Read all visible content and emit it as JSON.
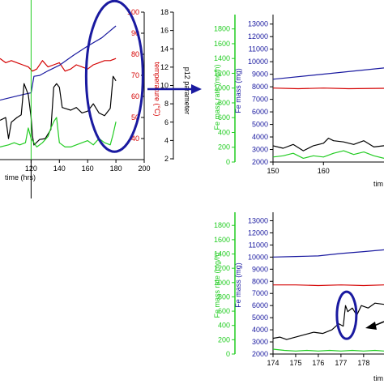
{
  "colors": {
    "black": "#000000",
    "red": "#d40000",
    "green": "#22cc22",
    "blue": "#1a1aa0",
    "marker_vline": "#22cc22",
    "annotation": "#1a1aa0"
  },
  "chart_data": [
    {
      "type": "line",
      "id": "main",
      "xlabel": "time (hrs)",
      "ylabel_red": "temperature (°C)",
      "ylabel_black": "p12 parameter",
      "x_ticks": [
        120,
        140,
        160,
        180,
        200
      ],
      "red_ticks": [
        40,
        50,
        60,
        70,
        80,
        90,
        100
      ],
      "black_ticks": [
        2,
        4,
        6,
        8,
        10,
        12,
        14,
        16,
        18
      ],
      "xlim": [
        98,
        200
      ],
      "red_ylim": [
        30,
        100
      ],
      "black_ylim": [
        2,
        18
      ],
      "marker_x": 120,
      "ellipse_center": [
        179,
        11
      ],
      "series": [
        {
          "color": "red",
          "x": [
            98,
            102,
            106,
            110,
            114,
            118,
            121,
            124,
            128,
            132,
            136,
            140,
            144,
            148,
            152,
            156,
            160,
            164,
            168,
            172,
            176,
            180
          ],
          "y": [
            78,
            76,
            77,
            76,
            75,
            74,
            72,
            73,
            77,
            74,
            75,
            76,
            72,
            73,
            75,
            74,
            73,
            75,
            76,
            77,
            77,
            78
          ]
        },
        {
          "color": "blue",
          "x": [
            98,
            106,
            114,
            120,
            122,
            126,
            132,
            140,
            150,
            160,
            170,
            180
          ],
          "y": [
            8.4,
            8.7,
            9.0,
            9.2,
            11.0,
            11.1,
            11.6,
            12.2,
            13.3,
            14.3,
            15.2,
            16.5
          ]
        },
        {
          "color": "black",
          "x": [
            98,
            102,
            104,
            106,
            110,
            113,
            115,
            118,
            120,
            121,
            122,
            126,
            130,
            134,
            136,
            138,
            140,
            142,
            144,
            148,
            152,
            156,
            160,
            164,
            168,
            172,
            176,
            178,
            180
          ],
          "y": [
            6.2,
            6.5,
            4.2,
            6.0,
            6.5,
            6.8,
            10.2,
            9.0,
            6.5,
            4.5,
            3.5,
            4.1,
            4.2,
            5.2,
            9.8,
            10.2,
            9.8,
            7.6,
            7.5,
            7.3,
            7.6,
            7.0,
            7.2,
            8.0,
            7.0,
            6.7,
            7.5,
            11.0,
            10.5
          ]
        },
        {
          "color": "green",
          "x": [
            98,
            104,
            108,
            112,
            116,
            118,
            120,
            122,
            124,
            128,
            132,
            134,
            136,
            138,
            140,
            142,
            144,
            148,
            152,
            156,
            160,
            164,
            168,
            172,
            176,
            178,
            180
          ],
          "y": [
            36,
            37,
            38,
            37,
            38,
            45,
            40,
            38,
            36,
            38,
            41,
            45,
            48,
            50,
            38,
            37,
            36,
            36,
            37,
            38,
            39,
            37,
            40,
            38,
            37,
            42,
            48
          ]
        }
      ]
    },
    {
      "type": "line",
      "id": "top-right",
      "ylabel_green": "Fe mass rate (mg/h)",
      "ylabel_blue": "Fe mass (mg)",
      "xlabel": "tim",
      "x_ticks": [
        150,
        160
      ],
      "green_ticks": [
        0,
        200,
        400,
        600,
        800,
        1000,
        1200,
        1400,
        1600,
        1800
      ],
      "blue_ticks": [
        2000,
        3000,
        4000,
        5000,
        6000,
        7000,
        8000,
        9000,
        10000,
        11000,
        12000,
        13000
      ],
      "xlim": [
        150,
        172
      ],
      "green_ylim": [
        0,
        1950
      ],
      "blue_ylim": [
        2000,
        13500
      ],
      "series": [
        {
          "color": "blue",
          "x": [
            150,
            172
          ],
          "y": [
            8600,
            9500
          ]
        },
        {
          "color": "red",
          "x": [
            150,
            155,
            160,
            165,
            172
          ],
          "y": [
            7900,
            7850,
            7900,
            7850,
            7880
          ]
        },
        {
          "color": "black",
          "x": [
            150,
            152,
            154,
            156,
            158,
            160,
            161,
            162,
            164,
            166,
            168,
            170,
            172
          ],
          "y": [
            3300,
            3100,
            3400,
            2900,
            3300,
            3500,
            3900,
            3700,
            3600,
            3400,
            3700,
            3200,
            3300
          ]
        },
        {
          "color": "green",
          "x": [
            150,
            152,
            154,
            156,
            158,
            160,
            162,
            164,
            166,
            168,
            170,
            172
          ],
          "y": [
            2400,
            2500,
            2700,
            2300,
            2500,
            2400,
            2700,
            2900,
            2600,
            2800,
            2500,
            2300
          ]
        }
      ]
    },
    {
      "type": "line",
      "id": "bottom-right",
      "ylabel_green": "Fe mass rate (mg/h)",
      "ylabel_blue": "Fe mass (mg)",
      "xlabel": "tim",
      "x_ticks": [
        174,
        175,
        176,
        177,
        178
      ],
      "green_ticks": [
        0,
        200,
        400,
        600,
        800,
        1000,
        1200,
        1400,
        1600,
        1800
      ],
      "blue_ticks": [
        2000,
        3000,
        4000,
        5000,
        6000,
        7000,
        8000,
        9000,
        10000,
        11000,
        12000,
        13000
      ],
      "xlim": [
        174,
        178.9
      ],
      "green_ylim": [
        0,
        1950
      ],
      "blue_ylim": [
        2000,
        13500
      ],
      "ellipse_center": [
        177.25,
        5200
      ],
      "series": [
        {
          "color": "blue",
          "x": [
            174,
            175,
            176,
            177,
            178,
            178.9
          ],
          "y": [
            10000,
            10050,
            10100,
            10300,
            10450,
            10600
          ]
        },
        {
          "color": "red",
          "x": [
            174,
            175,
            176,
            177,
            178,
            178.9
          ],
          "y": [
            7700,
            7700,
            7650,
            7700,
            7650,
            7700
          ]
        },
        {
          "color": "black",
          "x": [
            174,
            174.3,
            174.6,
            175,
            175.4,
            175.8,
            176.2,
            176.6,
            176.9,
            177.1,
            177.2,
            177.3,
            177.5,
            177.7,
            177.9,
            178.2,
            178.5,
            178.9
          ],
          "y": [
            3300,
            3400,
            3200,
            3400,
            3600,
            3800,
            3700,
            4000,
            4500,
            4300,
            6000,
            5500,
            5800,
            5200,
            6000,
            5800,
            6200,
            6100
          ]
        },
        {
          "color": "green",
          "x": [
            174,
            174.5,
            175,
            175.5,
            176,
            176.5,
            177,
            177.5,
            178,
            178.5,
            178.9
          ],
          "y": [
            2400,
            2300,
            2250,
            2300,
            2250,
            2300,
            2250,
            2300,
            2250,
            2300,
            2250
          ]
        }
      ]
    }
  ]
}
